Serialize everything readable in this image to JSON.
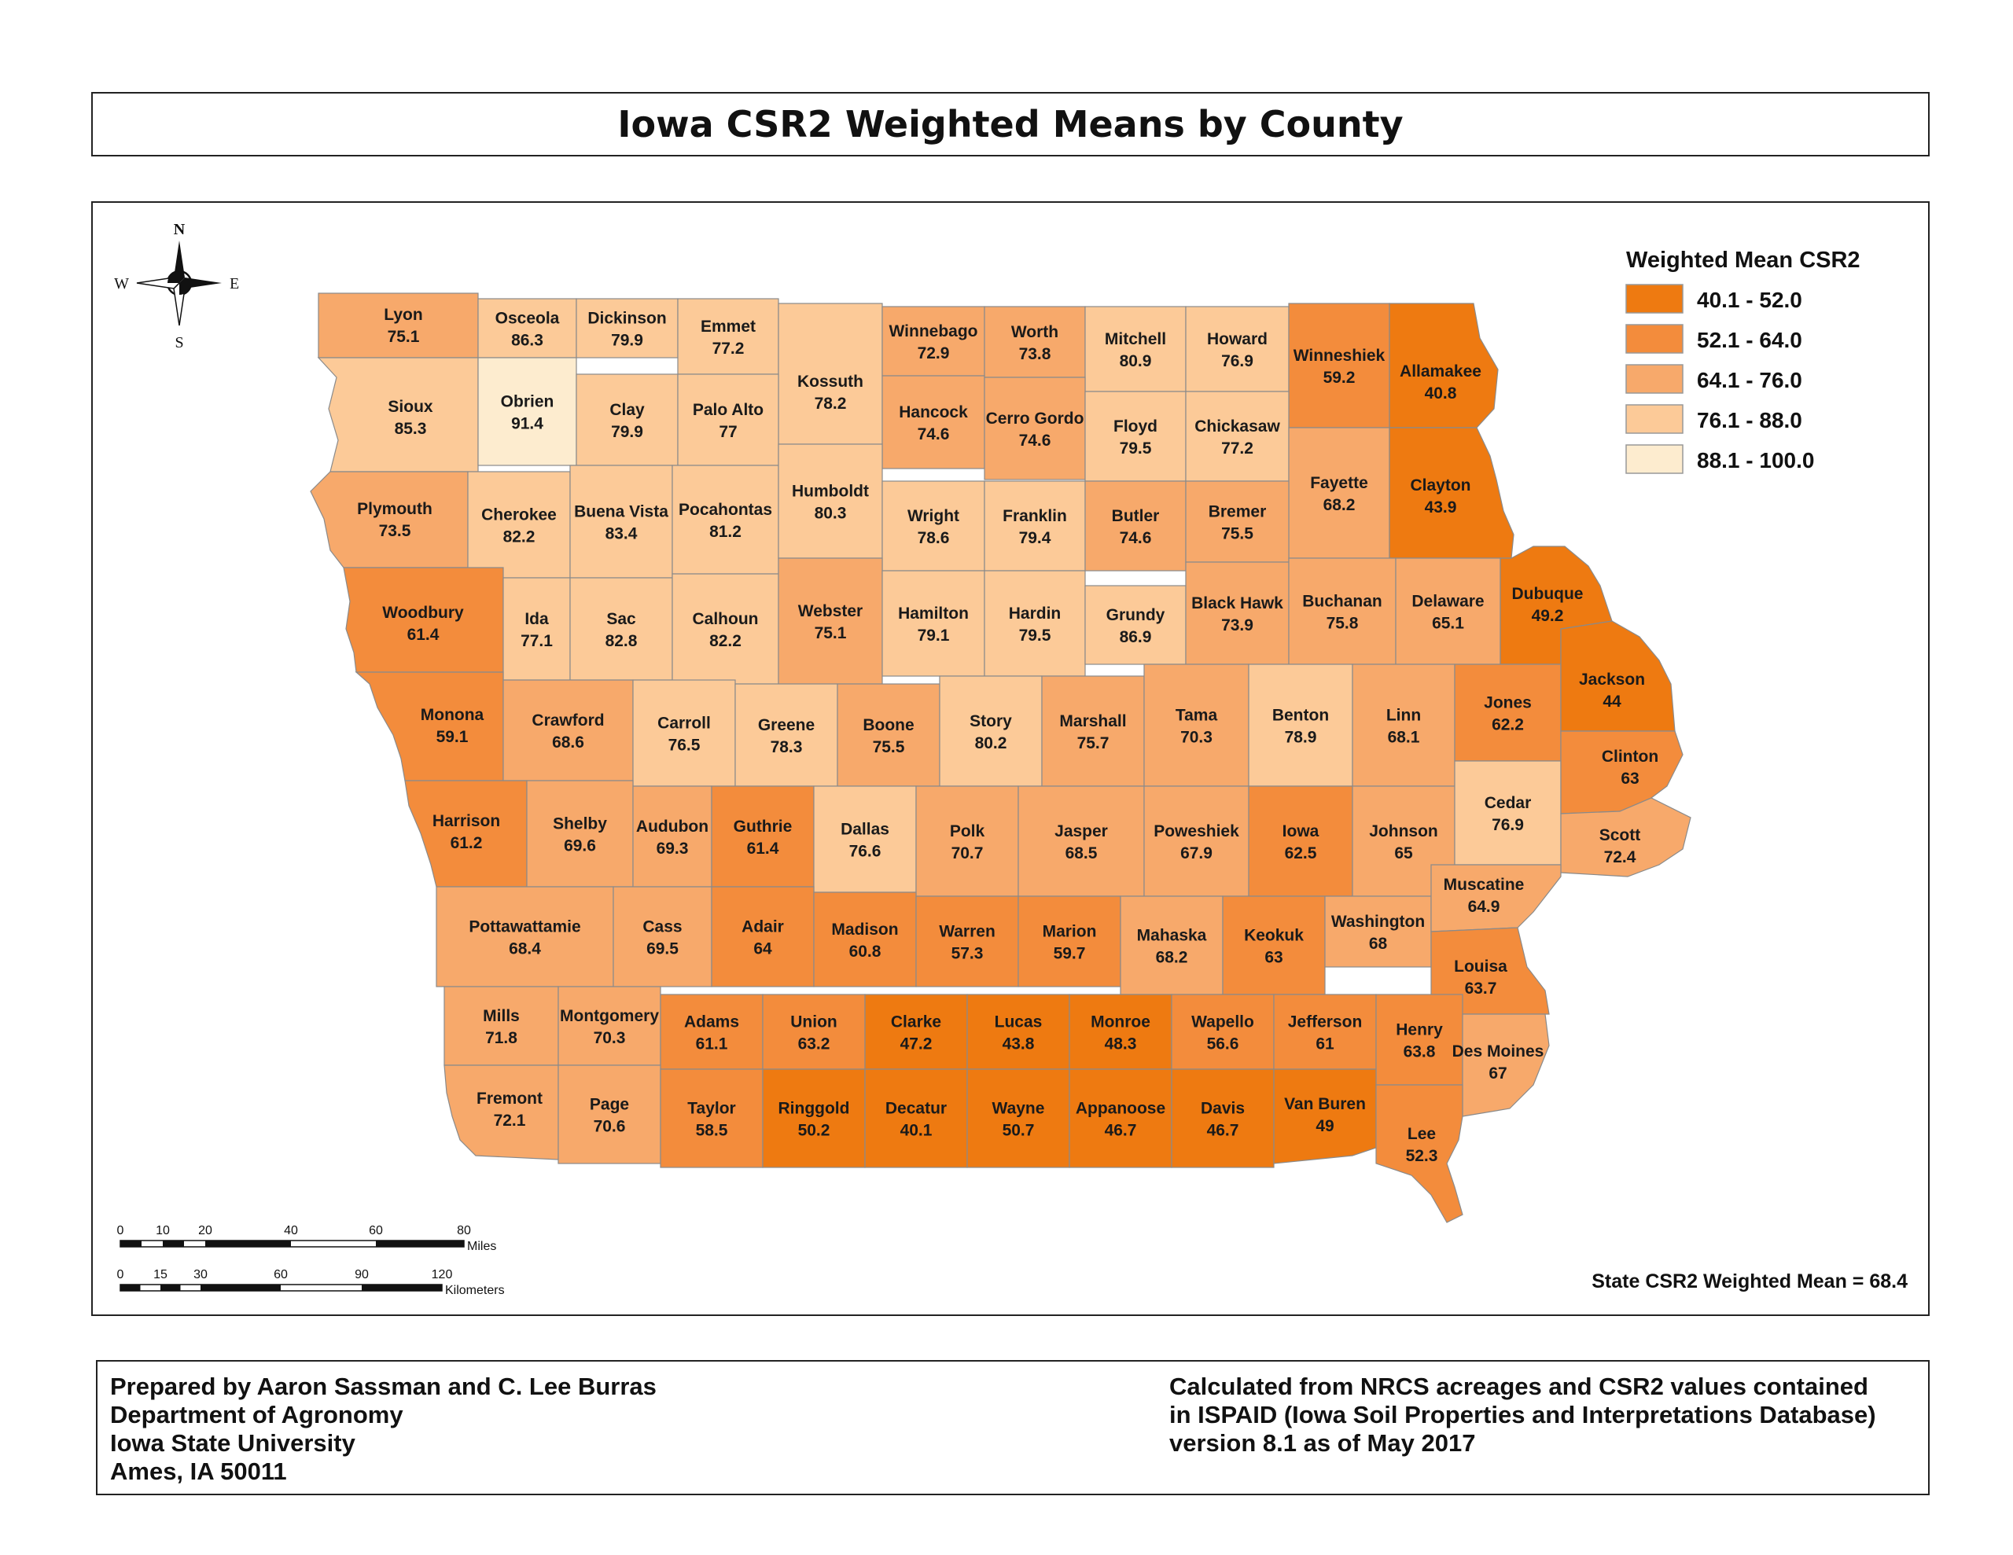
{
  "title": "Iowa CSR2 Weighted Means by County",
  "legend": {
    "title": "Weighted Mean CSR2",
    "classes": [
      {
        "label": "40.1 - 52.0",
        "color": "#ee7a11"
      },
      {
        "label": "52.1 - 64.0",
        "color": "#f38c3c"
      },
      {
        "label": "64.1 - 76.0",
        "color": "#f7a96b"
      },
      {
        "label": "76.1 - 88.0",
        "color": "#fcca98"
      },
      {
        "label": "88.1 - 100.0",
        "color": "#fdeccf"
      }
    ]
  },
  "state_mean": "State CSR2 Weighted Mean = 68.4",
  "compass": {
    "n": "N",
    "s": "S",
    "e": "E",
    "w": "W"
  },
  "scalebar": {
    "miles_ticks": [
      "0",
      "10",
      "20",
      "40",
      "60",
      "80"
    ],
    "miles_unit": "Miles",
    "km_ticks": [
      "0",
      "15",
      "30",
      "60",
      "90",
      "120"
    ],
    "km_unit": "Kilometers"
  },
  "footer": {
    "left": [
      "Prepared by Aaron Sassman and C. Lee Burras",
      "Department of Agronomy",
      "Iowa State University",
      "Ames, IA 50011"
    ],
    "right": [
      "Calculated from NRCS acreages and CSR2 values contained",
      "in ISPAID (Iowa Soil Properties and Interpretations Database)",
      "version 8.1 as of May 2017"
    ]
  },
  "counties": [
    {
      "name": "Lyon",
      "value": "75.1"
    },
    {
      "name": "Osceola",
      "value": "86.3"
    },
    {
      "name": "Dickinson",
      "value": "79.9"
    },
    {
      "name": "Emmet",
      "value": "77.2"
    },
    {
      "name": "Kossuth",
      "value": "78.2"
    },
    {
      "name": "Winnebago",
      "value": "72.9"
    },
    {
      "name": "Worth",
      "value": "73.8"
    },
    {
      "name": "Mitchell",
      "value": "80.9"
    },
    {
      "name": "Howard",
      "value": "76.9"
    },
    {
      "name": "Winneshiek",
      "value": "59.2"
    },
    {
      "name": "Allamakee",
      "value": "40.8"
    },
    {
      "name": "Sioux",
      "value": "85.3"
    },
    {
      "name": "Obrien",
      "value": "91.4"
    },
    {
      "name": "Clay",
      "value": "79.9"
    },
    {
      "name": "Palo Alto",
      "value": "77"
    },
    {
      "name": "Hancock",
      "value": "74.6"
    },
    {
      "name": "Cerro Gordo",
      "value": "74.6"
    },
    {
      "name": "Floyd",
      "value": "79.5"
    },
    {
      "name": "Chickasaw",
      "value": "77.2"
    },
    {
      "name": "Fayette",
      "value": "68.2"
    },
    {
      "name": "Clayton",
      "value": "43.9"
    },
    {
      "name": "Plymouth",
      "value": "73.5"
    },
    {
      "name": "Cherokee",
      "value": "82.2"
    },
    {
      "name": "Buena Vista",
      "value": "83.4"
    },
    {
      "name": "Pocahontas",
      "value": "81.2"
    },
    {
      "name": "Humboldt",
      "value": "80.3"
    },
    {
      "name": "Wright",
      "value": "78.6"
    },
    {
      "name": "Franklin",
      "value": "79.4"
    },
    {
      "name": "Butler",
      "value": "74.6"
    },
    {
      "name": "Bremer",
      "value": "75.5"
    },
    {
      "name": "Woodbury",
      "value": "61.4"
    },
    {
      "name": "Ida",
      "value": "77.1"
    },
    {
      "name": "Sac",
      "value": "82.8"
    },
    {
      "name": "Calhoun",
      "value": "82.2"
    },
    {
      "name": "Webster",
      "value": "75.1"
    },
    {
      "name": "Hamilton",
      "value": "79.1"
    },
    {
      "name": "Hardin",
      "value": "79.5"
    },
    {
      "name": "Grundy",
      "value": "86.9"
    },
    {
      "name": "Black Hawk",
      "value": "73.9"
    },
    {
      "name": "Buchanan",
      "value": "75.8"
    },
    {
      "name": "Delaware",
      "value": "65.1"
    },
    {
      "name": "Dubuque",
      "value": "49.2"
    },
    {
      "name": "Monona",
      "value": "59.1"
    },
    {
      "name": "Crawford",
      "value": "68.6"
    },
    {
      "name": "Carroll",
      "value": "76.5"
    },
    {
      "name": "Greene",
      "value": "78.3"
    },
    {
      "name": "Boone",
      "value": "75.5"
    },
    {
      "name": "Story",
      "value": "80.2"
    },
    {
      "name": "Marshall",
      "value": "75.7"
    },
    {
      "name": "Tama",
      "value": "70.3"
    },
    {
      "name": "Benton",
      "value": "78.9"
    },
    {
      "name": "Linn",
      "value": "68.1"
    },
    {
      "name": "Jones",
      "value": "62.2"
    },
    {
      "name": "Jackson",
      "value": "44"
    },
    {
      "name": "Harrison",
      "value": "61.2"
    },
    {
      "name": "Shelby",
      "value": "69.6"
    },
    {
      "name": "Audubon",
      "value": "69.3"
    },
    {
      "name": "Guthrie",
      "value": "61.4"
    },
    {
      "name": "Dallas",
      "value": "76.6"
    },
    {
      "name": "Polk",
      "value": "70.7"
    },
    {
      "name": "Jasper",
      "value": "68.5"
    },
    {
      "name": "Poweshiek",
      "value": "67.9"
    },
    {
      "name": "Iowa",
      "value": "62.5"
    },
    {
      "name": "Johnson",
      "value": "65"
    },
    {
      "name": "Cedar",
      "value": "76.9"
    },
    {
      "name": "Clinton",
      "value": "63"
    },
    {
      "name": "Scott",
      "value": "72.4"
    },
    {
      "name": "Pottawattamie",
      "value": "68.4"
    },
    {
      "name": "Cass",
      "value": "69.5"
    },
    {
      "name": "Adair",
      "value": "64"
    },
    {
      "name": "Madison",
      "value": "60.8"
    },
    {
      "name": "Warren",
      "value": "57.3"
    },
    {
      "name": "Marion",
      "value": "59.7"
    },
    {
      "name": "Mahaska",
      "value": "68.2"
    },
    {
      "name": "Keokuk",
      "value": "63"
    },
    {
      "name": "Washington",
      "value": "68"
    },
    {
      "name": "Muscatine",
      "value": "64.9"
    },
    {
      "name": "Louisa",
      "value": "63.7"
    },
    {
      "name": "Mills",
      "value": "71.8"
    },
    {
      "name": "Montgomery",
      "value": "70.3"
    },
    {
      "name": "Adams",
      "value": "61.1"
    },
    {
      "name": "Union",
      "value": "63.2"
    },
    {
      "name": "Clarke",
      "value": "47.2"
    },
    {
      "name": "Lucas",
      "value": "43.8"
    },
    {
      "name": "Monroe",
      "value": "48.3"
    },
    {
      "name": "Wapello",
      "value": "56.6"
    },
    {
      "name": "Jefferson",
      "value": "61"
    },
    {
      "name": "Henry",
      "value": "63.8"
    },
    {
      "name": "Des Moines",
      "value": "67"
    },
    {
      "name": "Fremont",
      "value": "72.1"
    },
    {
      "name": "Page",
      "value": "70.6"
    },
    {
      "name": "Taylor",
      "value": "58.5"
    },
    {
      "name": "Ringgold",
      "value": "50.2"
    },
    {
      "name": "Decatur",
      "value": "40.1"
    },
    {
      "name": "Wayne",
      "value": "50.7"
    },
    {
      "name": "Appanoose",
      "value": "46.7"
    },
    {
      "name": "Davis",
      "value": "46.7"
    },
    {
      "name": "Van Buren",
      "value": "49"
    },
    {
      "name": "Lee",
      "value": "52.3"
    }
  ]
}
